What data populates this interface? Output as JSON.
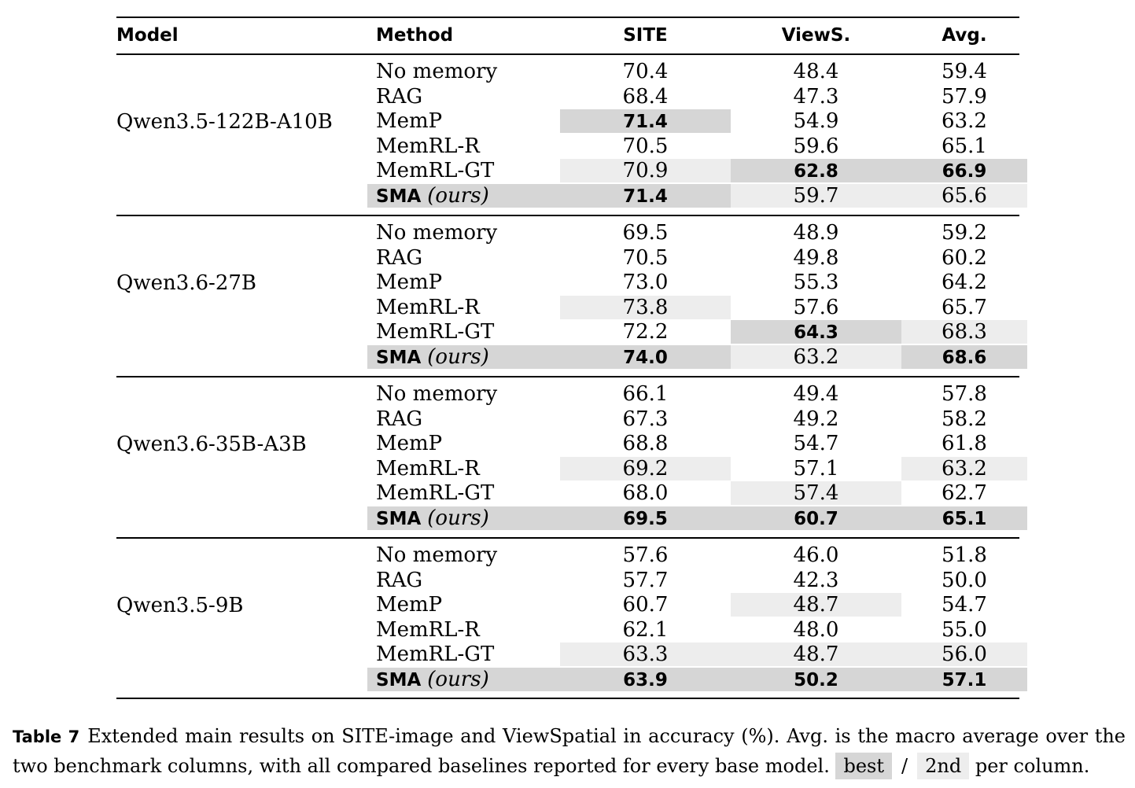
{
  "headers": {
    "model": "Model",
    "method": "Method",
    "site": "SITE",
    "views": "ViewS.",
    "avg": "Avg."
  },
  "groups": [
    {
      "model": "Qwen3.5-122B-A10B",
      "rows": [
        {
          "method": "No memory",
          "site": "70.4",
          "views": "48.4",
          "avg": "59.4"
        },
        {
          "method": "RAG",
          "site": "68.4",
          "views": "47.3",
          "avg": "57.9"
        },
        {
          "method": "MemP",
          "site": "71.4",
          "views": "54.9",
          "avg": "63.2"
        },
        {
          "method": "MemRL-R",
          "site": "70.5",
          "views": "59.6",
          "avg": "65.1"
        },
        {
          "method": "MemRL-GT",
          "site": "70.9",
          "views": "62.8",
          "avg": "66.9"
        },
        {
          "method": "SMA",
          "method_suffix": "(ours)",
          "site": "71.4",
          "views": "59.7",
          "avg": "65.6"
        }
      ]
    },
    {
      "model": "Qwen3.6-27B",
      "rows": [
        {
          "method": "No memory",
          "site": "69.5",
          "views": "48.9",
          "avg": "59.2"
        },
        {
          "method": "RAG",
          "site": "70.5",
          "views": "49.8",
          "avg": "60.2"
        },
        {
          "method": "MemP",
          "site": "73.0",
          "views": "55.3",
          "avg": "64.2"
        },
        {
          "method": "MemRL-R",
          "site": "73.8",
          "views": "57.6",
          "avg": "65.7"
        },
        {
          "method": "MemRL-GT",
          "site": "72.2",
          "views": "64.3",
          "avg": "68.3"
        },
        {
          "method": "SMA",
          "method_suffix": "(ours)",
          "site": "74.0",
          "views": "63.2",
          "avg": "68.6"
        }
      ]
    },
    {
      "model": "Qwen3.6-35B-A3B",
      "rows": [
        {
          "method": "No memory",
          "site": "66.1",
          "views": "49.4",
          "avg": "57.8"
        },
        {
          "method": "RAG",
          "site": "67.3",
          "views": "49.2",
          "avg": "58.2"
        },
        {
          "method": "MemP",
          "site": "68.8",
          "views": "54.7",
          "avg": "61.8"
        },
        {
          "method": "MemRL-R",
          "site": "69.2",
          "views": "57.1",
          "avg": "63.2"
        },
        {
          "method": "MemRL-GT",
          "site": "68.0",
          "views": "57.4",
          "avg": "62.7"
        },
        {
          "method": "SMA",
          "method_suffix": "(ours)",
          "site": "69.5",
          "views": "60.7",
          "avg": "65.1"
        }
      ]
    },
    {
      "model": "Qwen3.5-9B",
      "rows": [
        {
          "method": "No memory",
          "site": "57.6",
          "views": "46.0",
          "avg": "51.8"
        },
        {
          "method": "RAG",
          "site": "57.7",
          "views": "42.3",
          "avg": "50.0"
        },
        {
          "method": "MemP",
          "site": "60.7",
          "views": "48.7",
          "avg": "54.7"
        },
        {
          "method": "MemRL-R",
          "site": "62.1",
          "views": "48.0",
          "avg": "55.0"
        },
        {
          "method": "MemRL-GT",
          "site": "63.3",
          "views": "48.7",
          "avg": "56.0"
        },
        {
          "method": "SMA",
          "method_suffix": "(ours)",
          "site": "63.9",
          "views": "50.2",
          "avg": "57.1"
        }
      ]
    }
  ],
  "caption": {
    "label": "Table 7",
    "text": "Extended main results on SITE-image and ViewSpatial in accuracy (%). Avg. is the macro average over the two benchmark columns, with all compared baselines reported for every base model.",
    "legend_best": "best",
    "legend_sep": "/",
    "legend_second": "2nd",
    "legend_tail": "per column."
  },
  "colors": {
    "best_bg": "#d6d6d6",
    "second_bg": "#ededed"
  }
}
